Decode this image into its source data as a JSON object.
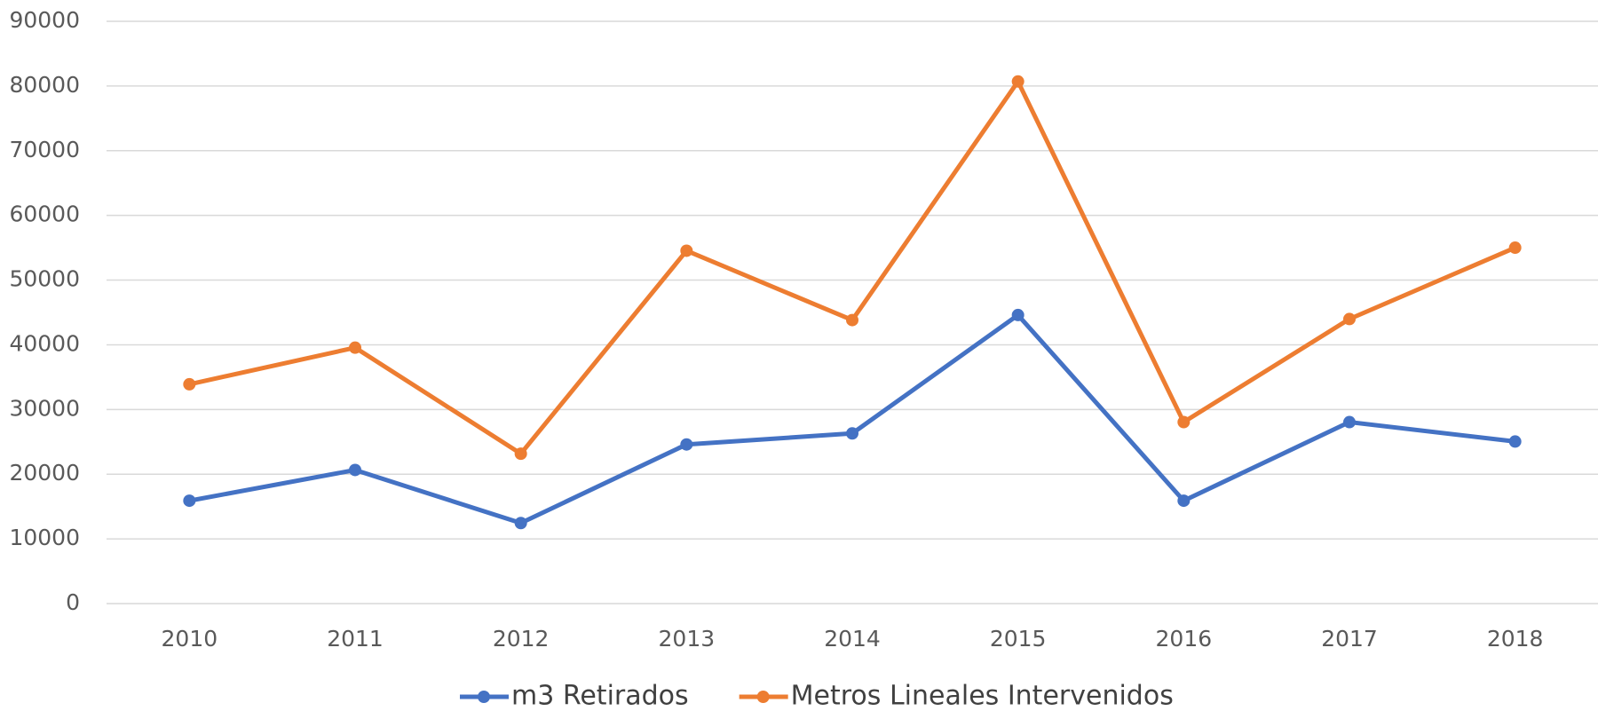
{
  "chart_data": {
    "type": "line",
    "categories": [
      "2010",
      "2011",
      "2012",
      "2013",
      "2014",
      "2015",
      "2016",
      "2017",
      "2018"
    ],
    "series": [
      {
        "name": "m3 Retirados",
        "color": "#4472c4",
        "values": [
          15900,
          20650,
          12450,
          24600,
          26300,
          44600,
          15900,
          28050,
          25050
        ]
      },
      {
        "name": "Metros Lineales Intervenidos",
        "color": "#ed7d31",
        "values": [
          33900,
          39560,
          23170,
          54540,
          43820,
          80700,
          28050,
          43980,
          55010
        ]
      }
    ],
    "ylim": [
      0,
      90000
    ],
    "yticks": [
      0,
      10000,
      20000,
      30000,
      40000,
      50000,
      60000,
      70000,
      80000,
      90000
    ],
    "grid": true,
    "legend": "bottom"
  }
}
